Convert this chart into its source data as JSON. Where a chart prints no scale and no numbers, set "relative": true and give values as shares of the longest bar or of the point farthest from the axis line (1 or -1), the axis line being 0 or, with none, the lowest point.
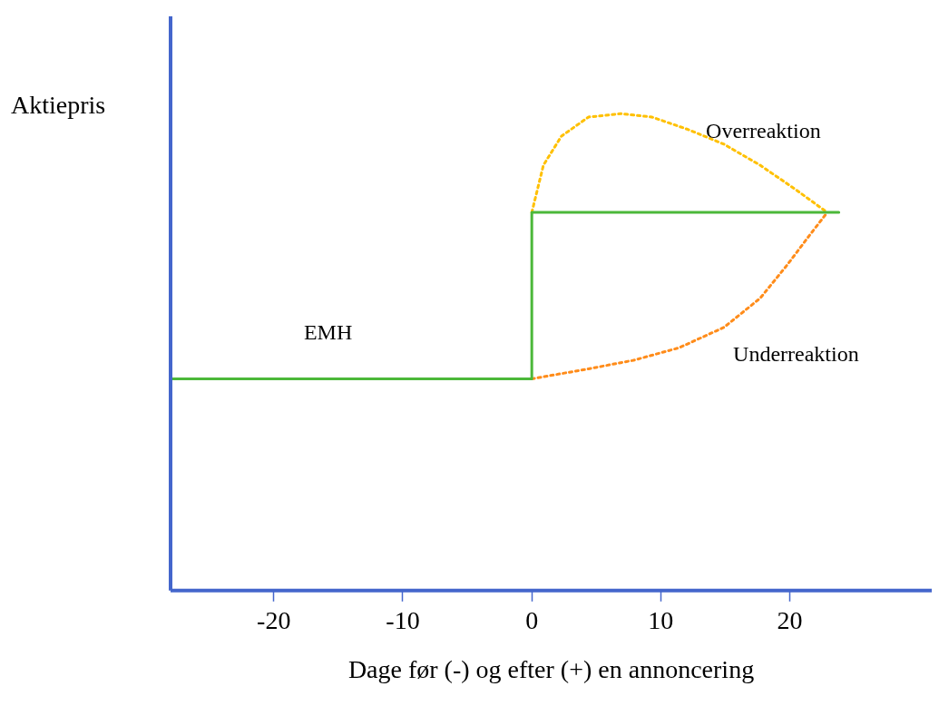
{
  "chart_data": {
    "type": "line",
    "relative": true,
    "xlabel": "Dage før (-) og efter (+) en annoncering",
    "ylabel": "Aktiepris",
    "xlim": [
      -28,
      31
    ],
    "xticks": [
      -20,
      -10,
      0,
      10,
      20
    ],
    "grid": false,
    "legend": false,
    "marker": "none",
    "series": [
      {
        "name": "EMH",
        "color": "#4cb83a",
        "line_style": "solid",
        "x": [
          -28,
          0,
          0,
          23.8
        ],
        "values": [
          0.444,
          0.444,
          0.793,
          0.793
        ]
      },
      {
        "name": "Overreaktion",
        "color": "#ffc000",
        "line_style": "dotted",
        "x": [
          0,
          0.9,
          2.3,
          4.4,
          6.9,
          9.3,
          12.1,
          14.9,
          17.7,
          20.5,
          22.9
        ],
        "values": [
          0.793,
          0.892,
          0.953,
          0.993,
          1,
          0.993,
          0.967,
          0.936,
          0.892,
          0.84,
          0.793
        ]
      },
      {
        "name": "Underreaktion",
        "color": "#ff8c1a",
        "line_style": "dotted",
        "x": [
          0,
          4.4,
          7.9,
          11.4,
          14.9,
          17.7,
          19.8,
          21.5,
          22.9
        ],
        "values": [
          0.444,
          0.465,
          0.483,
          0.509,
          0.552,
          0.613,
          0.683,
          0.744,
          0.793
        ]
      }
    ]
  }
}
